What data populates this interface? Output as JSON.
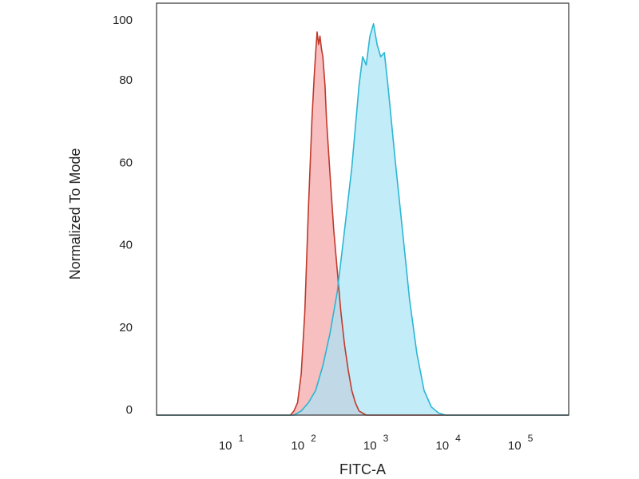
{
  "chart_data": {
    "type": "area",
    "xlabel": "FITC-A",
    "ylabel": "Normalized To Mode",
    "x_scale": "log",
    "xlim": [
      0,
      5.7
    ],
    "ylim": [
      0,
      100
    ],
    "yticks": [
      {
        "value": 0,
        "label": "0"
      },
      {
        "value": 20,
        "label": "20"
      },
      {
        "value": 40,
        "label": "40"
      },
      {
        "value": 60,
        "label": "60"
      },
      {
        "value": 80,
        "label": "80"
      },
      {
        "value": 100,
        "label": "100"
      }
    ],
    "xticks": [
      {
        "value": 1,
        "base": "10",
        "exp": "1"
      },
      {
        "value": 2,
        "base": "10",
        "exp": "2"
      },
      {
        "value": 3,
        "base": "10",
        "exp": "3"
      },
      {
        "value": 4,
        "base": "10",
        "exp": "4"
      },
      {
        "value": 5,
        "base": "10",
        "exp": "5"
      }
    ],
    "grid": false,
    "series": [
      {
        "fill": "#f4a4a4",
        "stroke": "#c0392b",
        "x": [
          0,
          1.2,
          1.85,
          1.9,
          1.95,
          2.0,
          2.05,
          2.1,
          2.15,
          2.18,
          2.2,
          2.22,
          2.24,
          2.26,
          2.28,
          2.3,
          2.33,
          2.35,
          2.4,
          2.45,
          2.5,
          2.55,
          2.6,
          2.65,
          2.7,
          2.75,
          2.8,
          2.85,
          2.9,
          3.0,
          5.7
        ],
        "y": [
          0,
          0,
          0,
          1,
          3,
          10,
          25,
          50,
          72,
          82,
          88,
          93,
          90,
          92,
          89,
          87,
          80,
          72,
          58,
          45,
          35,
          25,
          17,
          11,
          6,
          3,
          1,
          0.5,
          0,
          0,
          0
        ]
      },
      {
        "fill": "#a9e4f6",
        "stroke": "#2ab6d3",
        "x": [
          0,
          1.2,
          1.9,
          2.0,
          2.1,
          2.2,
          2.3,
          2.4,
          2.5,
          2.6,
          2.7,
          2.8,
          2.85,
          2.9,
          2.95,
          3.0,
          3.05,
          3.1,
          3.15,
          3.2,
          3.3,
          3.4,
          3.5,
          3.6,
          3.7,
          3.8,
          3.9,
          4.0,
          4.1,
          5.7
        ],
        "y": [
          0,
          0,
          0,
          1,
          3,
          6,
          12,
          20,
          30,
          45,
          60,
          80,
          87,
          85,
          92,
          95,
          90,
          87,
          88,
          80,
          62,
          45,
          28,
          15,
          6,
          2,
          0.5,
          0,
          0,
          0
        ]
      }
    ]
  }
}
